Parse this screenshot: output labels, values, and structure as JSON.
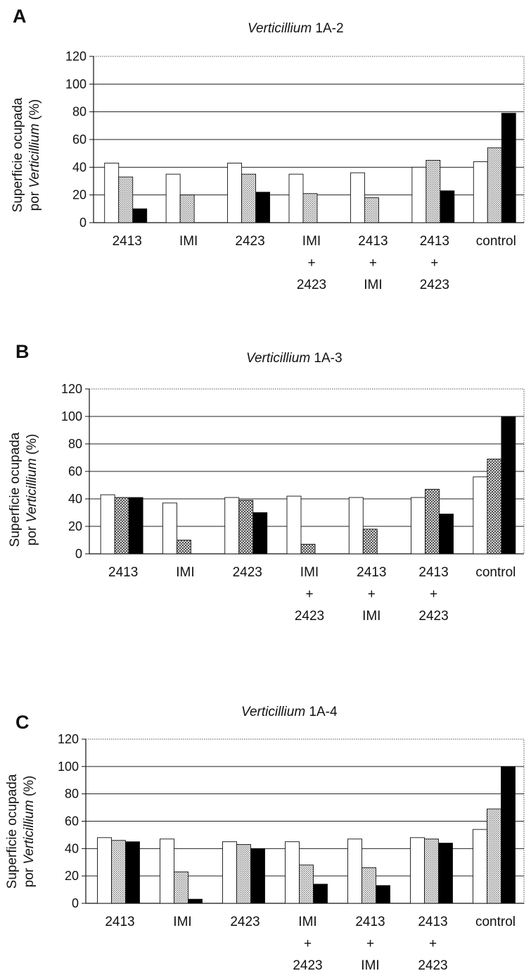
{
  "chart_data": [
    {
      "type": "bar",
      "panel": "A",
      "title_italic": "Verticillium",
      "title_rest": " 1A-2",
      "ylabel_line1": "Superficie ocupada",
      "ylabel_line2_pre": "por ",
      "ylabel_line2_italic": "Verticillium",
      "ylabel_line2_post": " (%)",
      "ylim": [
        0,
        120
      ],
      "yticks": [
        0,
        20,
        40,
        60,
        80,
        100,
        120
      ],
      "grid": true,
      "categories": [
        [
          "2413"
        ],
        [
          "IMI"
        ],
        [
          "2423"
        ],
        [
          "IMI",
          "+",
          "2423"
        ],
        [
          "2413",
          "+",
          "IMI"
        ],
        [
          "2413",
          "+",
          "2423"
        ],
        [
          "control"
        ]
      ],
      "series": [
        {
          "fill": "white",
          "values": [
            43,
            35,
            43,
            35,
            36,
            40,
            44
          ]
        },
        {
          "fill": "dots",
          "values": [
            33,
            20,
            35,
            21,
            18,
            45,
            54
          ]
        },
        {
          "fill": "black",
          "values": [
            10,
            null,
            22,
            null,
            null,
            23,
            79
          ]
        }
      ]
    },
    {
      "type": "bar",
      "panel": "B",
      "title_italic": "Verticillium",
      "title_rest": " 1A-3",
      "ylabel_line1": "Superficie ocupada",
      "ylabel_line2_pre": "por ",
      "ylabel_line2_italic": "Verticillium",
      "ylabel_line2_post": " (%)",
      "ylim": [
        0,
        120
      ],
      "yticks": [
        0,
        20,
        40,
        60,
        80,
        100,
        120
      ],
      "grid": true,
      "categories": [
        [
          "2413"
        ],
        [
          "IMI"
        ],
        [
          "2423"
        ],
        [
          "IMI",
          "+",
          "2423"
        ],
        [
          "2413",
          "+",
          "IMI"
        ],
        [
          "2413",
          "+",
          "2423"
        ],
        [
          "control"
        ]
      ],
      "series": [
        {
          "fill": "white",
          "values": [
            43,
            37,
            41,
            42,
            41,
            41,
            56
          ]
        },
        {
          "fill": "hatch",
          "values": [
            41,
            10,
            39,
            7,
            18,
            47,
            69
          ]
        },
        {
          "fill": "black",
          "values": [
            41,
            null,
            30,
            null,
            null,
            29,
            100
          ]
        }
      ]
    },
    {
      "type": "bar",
      "panel": "C",
      "title_italic": "Verticillium",
      "title_rest": " 1A-4",
      "ylabel_line1": "Superficie ocupada",
      "ylabel_line2_pre": "por ",
      "ylabel_line2_italic": "Verticillium",
      "ylabel_line2_post": " (%)",
      "ylim": [
        0,
        120
      ],
      "yticks": [
        0,
        20,
        40,
        60,
        80,
        100,
        120
      ],
      "grid": true,
      "categories": [
        [
          "2413"
        ],
        [
          "IMI"
        ],
        [
          "2423"
        ],
        [
          "IMI",
          "+",
          "2423"
        ],
        [
          "2413",
          "+",
          "IMI"
        ],
        [
          "2413",
          "+",
          "2423"
        ],
        [
          "control"
        ]
      ],
      "series": [
        {
          "fill": "white",
          "values": [
            48,
            47,
            45,
            45,
            47,
            48,
            54
          ]
        },
        {
          "fill": "dots",
          "values": [
            46,
            23,
            43,
            28,
            26,
            47,
            69
          ]
        },
        {
          "fill": "black",
          "values": [
            45,
            3,
            40,
            14,
            13,
            44,
            100
          ]
        }
      ]
    }
  ]
}
